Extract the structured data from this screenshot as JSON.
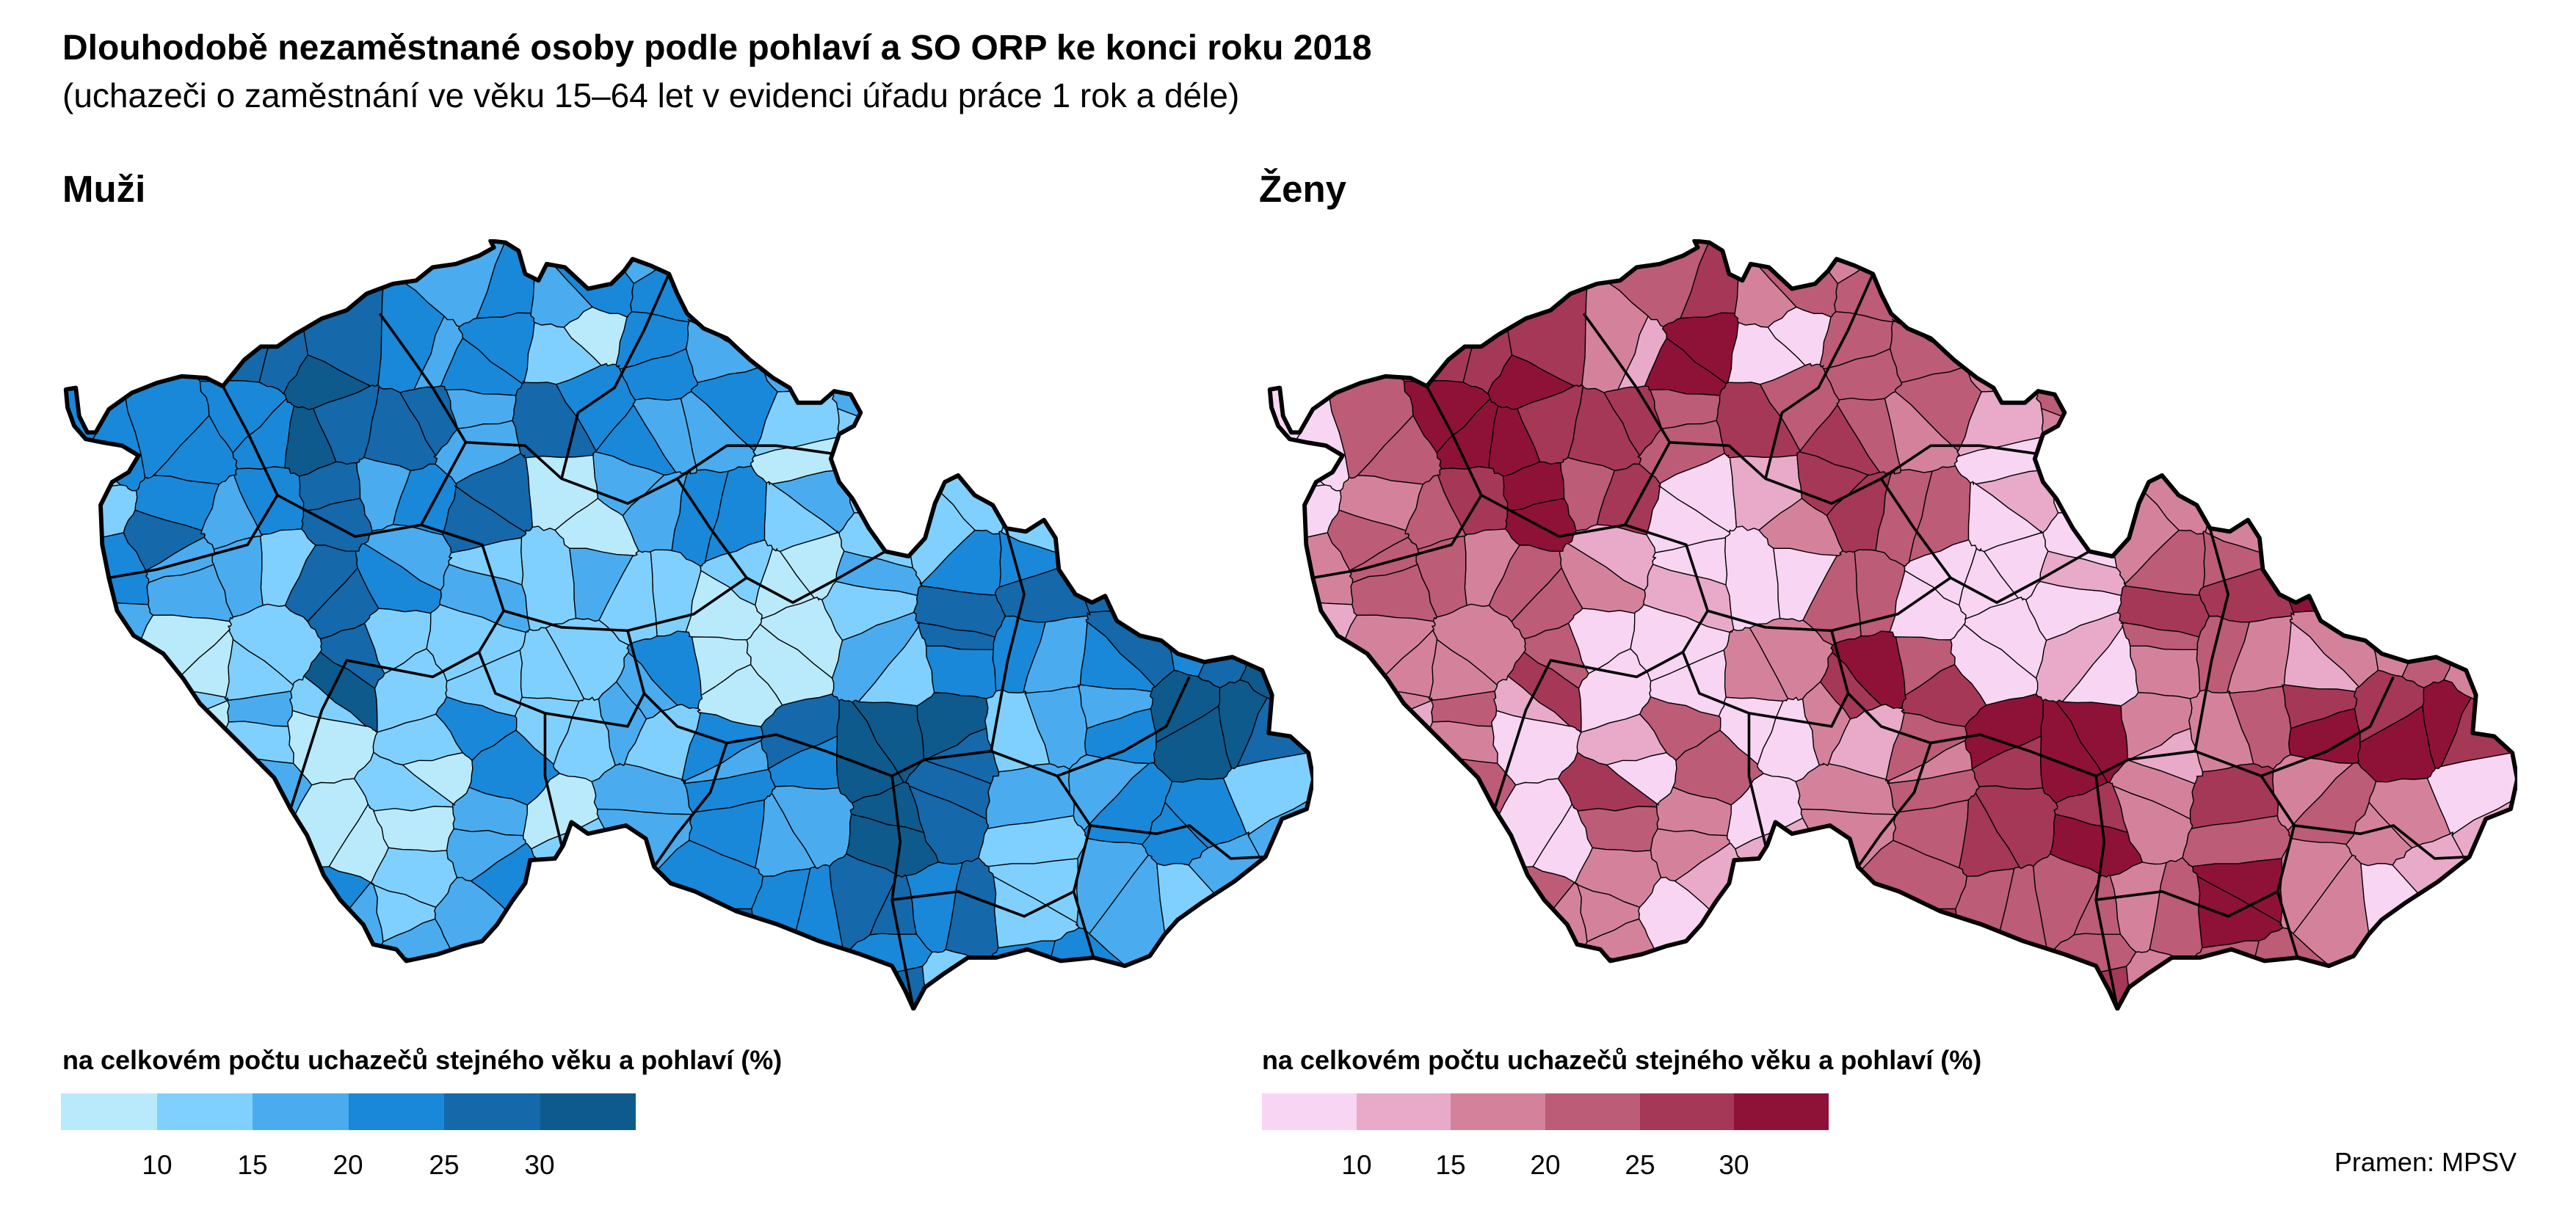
{
  "title": "Dlouhodobě nezaměstnané osoby podle pohlaví a SO ORP ke konci roku 2018",
  "subtitle": "(uchazeči o zaměstnání ve věku 15–64 let v evidenci úřadu práce 1 rok a déle)",
  "source": "Pramen: MPSV",
  "chart_data": [
    {
      "type": "choropleth",
      "title": "Muži",
      "legend_title": "na celkovém počtu uchazečů stejného věku a pohlaví (%)",
      "legend_ticks": [
        "10",
        "15",
        "20",
        "25",
        "30"
      ],
      "class_breaks": [
        10,
        15,
        20,
        25,
        30
      ],
      "class_colors": [
        "#B9EAFB",
        "#80D0FF",
        "#4AACEE",
        "#1A88D8",
        "#1568AA",
        "#0E5A8C"
      ],
      "region_classes": [
        [
          null,
          null,
          null,
          null,
          null,
          3,
          3,
          3,
          2,
          null,
          null,
          null,
          null,
          null,
          null,
          null
        ],
        [
          null,
          null,
          4,
          5,
          3,
          3,
          1,
          3,
          2,
          2,
          null,
          null,
          null,
          null,
          null,
          null
        ],
        [
          3,
          3,
          3,
          5,
          4,
          2,
          4,
          2,
          2,
          1,
          1,
          null,
          null,
          null,
          null,
          null
        ],
        [
          1,
          3,
          2,
          4,
          2,
          4,
          0,
          2,
          3,
          1,
          1,
          1,
          1,
          null,
          null,
          null
        ],
        [
          3,
          2,
          1,
          4,
          3,
          1,
          2,
          1,
          1,
          0,
          1,
          3,
          3,
          4,
          null,
          null
        ],
        [
          1,
          0,
          1,
          4,
          1,
          1,
          1,
          3,
          0,
          0,
          1,
          3,
          3,
          4,
          4,
          5
        ],
        [
          null,
          1,
          1,
          0,
          0,
          3,
          1,
          2,
          2,
          4,
          5,
          5,
          2,
          3,
          5,
          5
        ],
        [
          null,
          null,
          1,
          0,
          1,
          2,
          0,
          2,
          3,
          2,
          5,
          4,
          2,
          2,
          3,
          2
        ],
        [
          null,
          null,
          null,
          2,
          1,
          2,
          0,
          null,
          3,
          3,
          4,
          3,
          1,
          2,
          1,
          null
        ],
        [
          null,
          null,
          null,
          null,
          2,
          1,
          null,
          null,
          null,
          null,
          3,
          1,
          3,
          null,
          null,
          null
        ]
      ]
    },
    {
      "type": "choropleth",
      "title": "Ženy",
      "legend_title": "na celkovém počtu uchazečů stejného věku a pohlaví (%)",
      "legend_ticks": [
        "10",
        "15",
        "20",
        "25",
        "30"
      ],
      "class_breaks": [
        10,
        15,
        20,
        25,
        30
      ],
      "class_colors": [
        "#F8D5F3",
        "#E8AAC8",
        "#D4829C",
        "#BC5C76",
        "#A53857",
        "#8E1238"
      ],
      "region_classes": [
        [
          null,
          null,
          null,
          null,
          null,
          4,
          3,
          3,
          5,
          null,
          null,
          null,
          null,
          null,
          null,
          null
        ],
        [
          null,
          null,
          4,
          5,
          2,
          5,
          0,
          3,
          3,
          2,
          null,
          null,
          null,
          null,
          null,
          null
        ],
        [
          0,
          3,
          5,
          5,
          4,
          3,
          4,
          3,
          2,
          1,
          2,
          null,
          null,
          null,
          null,
          null
        ],
        [
          0,
          2,
          3,
          5,
          3,
          0,
          2,
          4,
          3,
          0,
          0,
          2,
          2,
          null,
          null,
          null
        ],
        [
          2,
          3,
          2,
          3,
          2,
          0,
          0,
          3,
          0,
          0,
          0,
          3,
          3,
          5,
          null,
          null
        ],
        [
          2,
          2,
          2,
          3,
          0,
          0,
          2,
          5,
          4,
          0,
          0,
          2,
          3,
          2,
          3,
          2
        ],
        [
          null,
          2,
          2,
          0,
          0,
          3,
          0,
          2,
          2,
          5,
          5,
          2,
          3,
          5,
          4,
          5
        ],
        [
          null,
          null,
          2,
          0,
          4,
          2,
          0,
          2,
          3,
          4,
          4,
          2,
          4,
          2,
          2,
          1
        ],
        [
          null,
          null,
          null,
          2,
          2,
          0,
          0,
          null,
          3,
          3,
          3,
          2,
          5,
          2,
          0,
          null
        ],
        [
          null,
          null,
          null,
          null,
          2,
          2,
          null,
          null,
          null,
          null,
          3,
          2,
          3,
          null,
          null,
          null
        ]
      ]
    }
  ]
}
